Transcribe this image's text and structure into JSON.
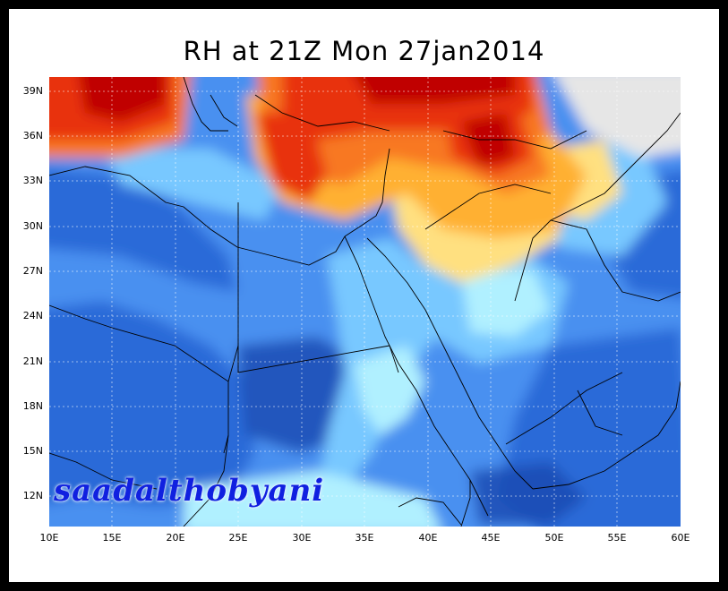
{
  "title": "RH at 21Z Mon 27jan2014",
  "watermark": "saadalthobyani",
  "lat_labels": [
    "39N",
    "36N",
    "33N",
    "30N",
    "27N",
    "24N",
    "21N",
    "18N",
    "15N",
    "12N"
  ],
  "lon_labels": [
    "10E",
    "15E",
    "20E",
    "25E",
    "30E",
    "35E",
    "40E",
    "45E",
    "50E",
    "55E",
    "60E"
  ],
  "colors": {
    "dark_red": "#c00000",
    "red": "#e83010",
    "orange": "#f87820",
    "light_orange": "#ffb030",
    "yellow": "#ffe080",
    "gray": "#e6e6e6",
    "cyan": "#b0f0ff",
    "light_blue": "#78c8ff",
    "mid_blue": "#4890f0",
    "blue": "#2a6ad8",
    "deep_blue": "#1848b0"
  }
}
